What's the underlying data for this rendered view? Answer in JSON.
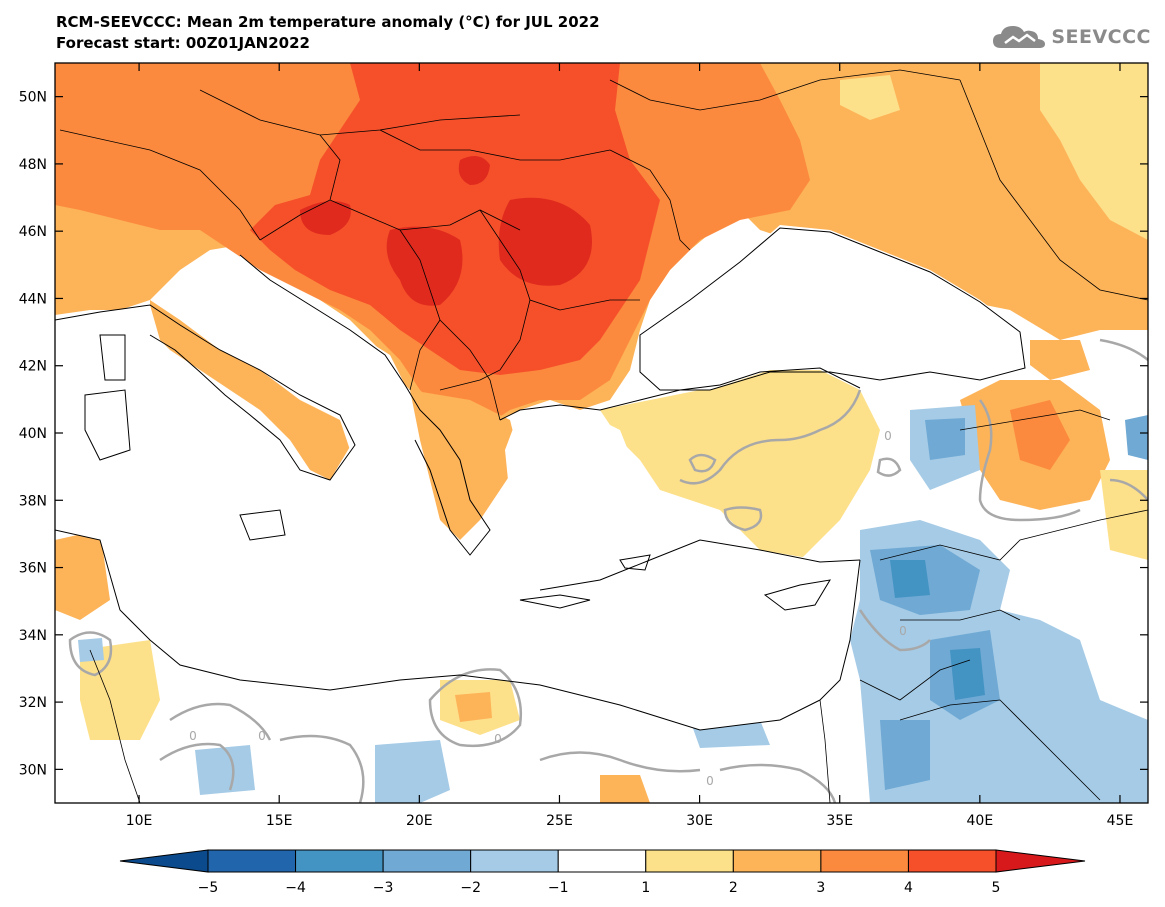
{
  "title": {
    "line1": "RCM-SEEVCCC: Mean 2m temperature anomaly (°C) for JUL 2022",
    "line2": "Forecast start: 00Z01JAN2022"
  },
  "logo": {
    "text": "SEEVCCC",
    "icon": "cloud-icon",
    "color": "#8a8a8a"
  },
  "map": {
    "projection": "lat-lon",
    "lon_range": [
      7,
      46
    ],
    "lat_range": [
      29,
      51
    ],
    "lon_ticks": [
      10,
      15,
      20,
      25,
      30,
      35,
      40,
      45
    ],
    "lon_tick_labels": [
      "10E",
      "15E",
      "20E",
      "25E",
      "30E",
      "35E",
      "40E",
      "45E"
    ],
    "lat_ticks": [
      30,
      32,
      34,
      36,
      38,
      40,
      42,
      44,
      46,
      48,
      50
    ],
    "lat_tick_labels": [
      "30N",
      "32N",
      "34N",
      "36N",
      "38N",
      "40N",
      "42N",
      "44N",
      "46N",
      "48N",
      "50N"
    ],
    "zero_contour_label": "0"
  },
  "colorbar": {
    "levels": [
      -5,
      -4,
      -3,
      -2,
      -1,
      1,
      2,
      3,
      4,
      5
    ],
    "labels": [
      "−5",
      "−4",
      "−3",
      "−2",
      "−1",
      "1",
      "2",
      "3",
      "4",
      "5"
    ],
    "colors": [
      "#0b4a8c",
      "#2166ac",
      "#4393c3",
      "#6fa9d4",
      "#a5cbe6",
      "#ffffff",
      "#fde08a",
      "#fdb358",
      "#fc8a3e",
      "#f5502a",
      "#d7191c"
    ],
    "extend": "both"
  },
  "chart_data": {
    "type": "heatmap",
    "title": "RCM-SEEVCCC: Mean 2m temperature anomaly (°C) for JUL 2022",
    "subtitle": "Forecast start: 00Z01JAN2022",
    "xlabel": "",
    "ylabel": "",
    "xlim": [
      7,
      46
    ],
    "ylim": [
      29,
      51
    ],
    "legend": "bottom",
    "grid": false,
    "anomaly_regions": [
      {
        "lon": 20.5,
        "lat": 45.5,
        "value": 4.3
      },
      {
        "lon": 24.5,
        "lat": 46,
        "value": 4.2
      },
      {
        "lon": 17,
        "lat": 46.5,
        "value": 4.1
      },
      {
        "lon": 25,
        "lat": 47.5,
        "value": 3.6
      },
      {
        "lon": 16,
        "lat": 49,
        "value": 3.2
      },
      {
        "lon": 11,
        "lat": 47,
        "value": 2.7
      },
      {
        "lon": 31,
        "lat": 48,
        "value": 2.7
      },
      {
        "lon": 39,
        "lat": 47,
        "value": 2.5
      },
      {
        "lon": 43,
        "lat": 49,
        "value": 1.6
      },
      {
        "lon": 12,
        "lat": 43,
        "value": 2.1
      },
      {
        "lon": 22,
        "lat": 41,
        "value": 3.2
      },
      {
        "lon": 33,
        "lat": 39,
        "value": 1.5
      },
      {
        "lon": 43,
        "lat": 40,
        "value": 2.3
      },
      {
        "lon": 39,
        "lat": 40,
        "value": -2.1
      },
      {
        "lon": 37.5,
        "lat": 35.8,
        "value": -2.5
      },
      {
        "lon": 39.5,
        "lat": 32.5,
        "value": -2.3
      },
      {
        "lon": 37.5,
        "lat": 30.5,
        "value": -2.1
      },
      {
        "lon": 20,
        "lat": 31.5,
        "value": 1.6
      },
      {
        "lon": 9,
        "lat": 32,
        "value": 1.4
      },
      {
        "lon": 13,
        "lat": 30,
        "value": -1.4
      }
    ]
  }
}
